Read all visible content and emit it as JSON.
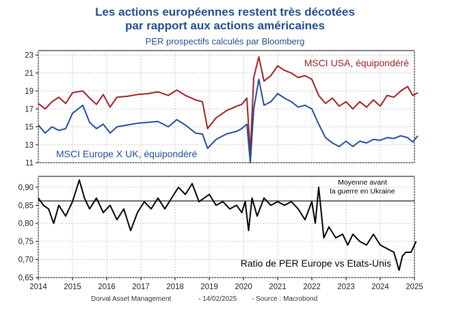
{
  "title_line1": "Les actions européennes restent très décotées",
  "title_line2": "par rapport aux actions américaines",
  "subtitle": "PER prospectifs calculés par Bloomberg",
  "footer": {
    "source_org": "Dorval Asset Management",
    "date": "-  14/02/2025",
    "source": "-  Source : Macrobond"
  },
  "colors": {
    "usa": "#a01e22",
    "europe": "#1f4e9c",
    "ratio": "#000000",
    "title": "#1f4e8c"
  },
  "chart_data": [
    {
      "type": "line",
      "title": "PER prospectifs calculés par Bloomberg",
      "xlabel": "",
      "ylabel": "",
      "xlim": [
        2014,
        2025
      ],
      "ylim": [
        11,
        23.5
      ],
      "yticks": [
        11,
        13,
        15,
        17,
        19,
        21,
        23
      ],
      "x_ticks": [
        "2014",
        "2015",
        "2016",
        "2017",
        "2018",
        "2019",
        "2020",
        "2021",
        "2022",
        "2023",
        "2024",
        "2025"
      ],
      "grid": true,
      "series": [
        {
          "name": "MSCI USA, équipondéré",
          "x": [
            2014.0,
            2014.2,
            2014.4,
            2014.6,
            2014.8,
            2015.0,
            2015.3,
            2015.5,
            2015.7,
            2015.9,
            2016.1,
            2016.3,
            2016.6,
            2016.9,
            2017.2,
            2017.5,
            2017.8,
            2018.05,
            2018.3,
            2018.6,
            2018.8,
            2018.95,
            2019.2,
            2019.5,
            2019.8,
            2019.95,
            2020.1,
            2020.2,
            2020.3,
            2020.45,
            2020.6,
            2020.8,
            2021.0,
            2021.2,
            2021.4,
            2021.6,
            2021.8,
            2022.0,
            2022.2,
            2022.4,
            2022.6,
            2022.8,
            2023.0,
            2023.2,
            2023.4,
            2023.6,
            2023.8,
            2024.0,
            2024.2,
            2024.4,
            2024.6,
            2024.8,
            2024.95,
            2025.1
          ],
          "values": [
            17.6,
            17.0,
            17.8,
            18.3,
            17.6,
            18.8,
            19.0,
            18.2,
            17.5,
            18.6,
            17.2,
            18.3,
            18.4,
            18.6,
            18.7,
            18.9,
            18.5,
            19.1,
            18.5,
            18.0,
            17.8,
            14.8,
            16.0,
            16.8,
            17.3,
            17.5,
            18.2,
            12.0,
            20.5,
            22.8,
            20.1,
            20.7,
            21.8,
            21.3,
            21.0,
            20.5,
            20.7,
            20.3,
            18.5,
            17.6,
            18.2,
            17.3,
            17.8,
            17.0,
            17.8,
            17.2,
            18.0,
            17.3,
            18.5,
            18.3,
            19.0,
            19.5,
            18.5,
            18.8
          ]
        },
        {
          "name": "MSCI Europe X UK, équipondéré",
          "x": [
            2014.0,
            2014.2,
            2014.4,
            2014.6,
            2014.8,
            2015.0,
            2015.3,
            2015.5,
            2015.7,
            2015.9,
            2016.1,
            2016.3,
            2016.6,
            2016.9,
            2017.2,
            2017.5,
            2017.8,
            2018.05,
            2018.3,
            2018.6,
            2018.8,
            2018.95,
            2019.2,
            2019.5,
            2019.8,
            2019.95,
            2020.1,
            2020.2,
            2020.3,
            2020.45,
            2020.6,
            2020.8,
            2021.0,
            2021.2,
            2021.4,
            2021.6,
            2021.8,
            2022.0,
            2022.2,
            2022.4,
            2022.6,
            2022.8,
            2023.0,
            2023.2,
            2023.4,
            2023.6,
            2023.8,
            2024.0,
            2024.2,
            2024.4,
            2024.6,
            2024.8,
            2024.95,
            2025.1
          ],
          "values": [
            15.2,
            14.3,
            15.0,
            14.6,
            14.8,
            16.5,
            17.4,
            15.5,
            14.8,
            15.3,
            14.3,
            15.0,
            15.2,
            15.4,
            15.5,
            15.6,
            15.0,
            15.8,
            15.2,
            14.3,
            14.2,
            12.6,
            13.6,
            14.2,
            14.5,
            14.8,
            15.3,
            11.0,
            17.0,
            20.3,
            17.4,
            17.8,
            18.7,
            18.2,
            17.8,
            17.2,
            17.4,
            17.0,
            15.3,
            13.8,
            13.2,
            12.8,
            13.4,
            12.8,
            13.4,
            13.2,
            13.6,
            13.5,
            13.8,
            13.7,
            14.0,
            13.8,
            13.3,
            14.0
          ]
        }
      ]
    },
    {
      "type": "line",
      "title": "Ratio de PER Europe vs Etats-Unis",
      "xlabel": "",
      "ylabel": "",
      "xlim": [
        2014,
        2025
      ],
      "ylim": [
        0.65,
        0.93
      ],
      "yticks": [
        0.65,
        0.7,
        0.75,
        0.8,
        0.85,
        0.9
      ],
      "x_ticks": [
        "2014",
        "2015",
        "2016",
        "2017",
        "2018",
        "2019",
        "2020",
        "2021",
        "2022",
        "2023",
        "2024",
        "2025"
      ],
      "grid": true,
      "reference_line": {
        "value": 0.862,
        "label_line1": "Moyenne avant",
        "label_line2": "la guerre en Ukraine"
      },
      "series": [
        {
          "name": "Ratio de PER Europe vs Etats-Unis",
          "x": [
            2014.0,
            2014.15,
            2014.3,
            2014.45,
            2014.6,
            2014.8,
            2015.0,
            2015.2,
            2015.35,
            2015.5,
            2015.7,
            2015.9,
            2016.1,
            2016.3,
            2016.5,
            2016.7,
            2016.9,
            2017.1,
            2017.3,
            2017.5,
            2017.7,
            2017.9,
            2018.1,
            2018.3,
            2018.5,
            2018.7,
            2018.85,
            2019.0,
            2019.2,
            2019.4,
            2019.6,
            2019.8,
            2019.95,
            2020.05,
            2020.15,
            2020.25,
            2020.4,
            2020.6,
            2020.8,
            2021.0,
            2021.2,
            2021.4,
            2021.6,
            2021.8,
            2022.0,
            2022.1,
            2022.2,
            2022.35,
            2022.5,
            2022.7,
            2022.9,
            2023.05,
            2023.2,
            2023.4,
            2023.6,
            2023.8,
            2024.0,
            2024.2,
            2024.4,
            2024.55,
            2024.65,
            2024.75,
            2024.9,
            2025.05
          ],
          "values": [
            0.87,
            0.85,
            0.84,
            0.8,
            0.85,
            0.82,
            0.86,
            0.92,
            0.87,
            0.84,
            0.87,
            0.83,
            0.85,
            0.81,
            0.84,
            0.78,
            0.83,
            0.86,
            0.84,
            0.87,
            0.84,
            0.87,
            0.9,
            0.88,
            0.91,
            0.86,
            0.87,
            0.88,
            0.85,
            0.86,
            0.84,
            0.85,
            0.83,
            0.86,
            0.78,
            0.87,
            0.82,
            0.87,
            0.85,
            0.86,
            0.85,
            0.86,
            0.84,
            0.81,
            0.86,
            0.8,
            0.9,
            0.76,
            0.79,
            0.76,
            0.77,
            0.74,
            0.77,
            0.75,
            0.74,
            0.77,
            0.74,
            0.73,
            0.72,
            0.67,
            0.71,
            0.72,
            0.72,
            0.75
          ]
        }
      ]
    }
  ]
}
